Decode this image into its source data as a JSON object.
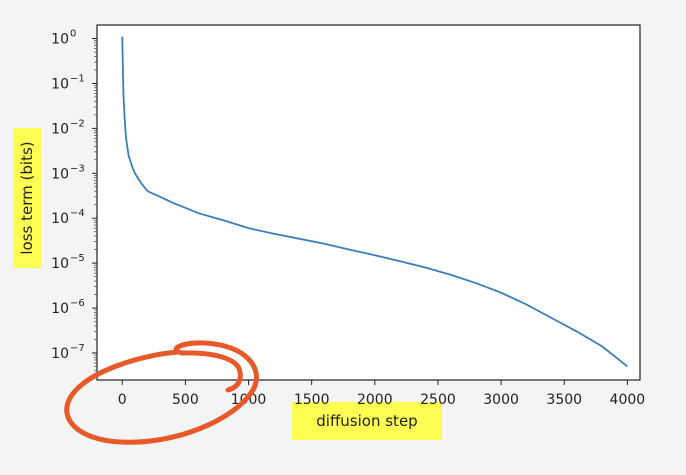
{
  "chart_data": {
    "type": "line",
    "xlabel": "diffusion step",
    "ylabel": "loss term (bits)",
    "y_scale": "log",
    "xlim": [
      -200,
      4100
    ],
    "ylim": [
      2.5e-08,
      2.0
    ],
    "x_ticks": [
      0,
      500,
      1000,
      1500,
      2000,
      2500,
      3000,
      3500,
      4000
    ],
    "x_tick_labels": [
      "0",
      "500",
      "1000",
      "1500",
      "2000",
      "2500",
      "3000",
      "3500",
      "4000"
    ],
    "y_ticks": [
      1,
      0.1,
      0.01,
      0.001,
      0.0001,
      1e-05,
      1e-06,
      1e-07
    ],
    "y_tick_labels": [
      {
        "base": "10",
        "exp": "0"
      },
      {
        "base": "10",
        "exp": "−1"
      },
      {
        "base": "10",
        "exp": "−2"
      },
      {
        "base": "10",
        "exp": "−3"
      },
      {
        "base": "10",
        "exp": "−4"
      },
      {
        "base": "10",
        "exp": "−5"
      },
      {
        "base": "10",
        "exp": "−6"
      },
      {
        "base": "10",
        "exp": "−7"
      }
    ],
    "grid": false,
    "line_color": "#3a7fbd",
    "highlight_color": "#fdfd52",
    "annotation_color": "#e8592a",
    "series": [
      {
        "x": [
          0,
          5,
          10,
          20,
          30,
          50,
          75,
          100,
          150,
          200,
          300,
          400,
          500,
          600,
          800,
          1000,
          1200,
          1400,
          1600,
          1800,
          2000,
          2200,
          2400,
          2600,
          2800,
          3000,
          3200,
          3400,
          3600,
          3800,
          4000
        ],
        "y": [
          1.1,
          0.2,
          0.05,
          0.015,
          0.006,
          0.0025,
          0.0015,
          0.001,
          0.0006,
          0.0004,
          0.0003,
          0.00022,
          0.00017,
          0.00013,
          9e-05,
          6e-05,
          4.5e-05,
          3.5e-05,
          2.7e-05,
          2e-05,
          1.5e-05,
          1.1e-05,
          8e-06,
          5.5e-06,
          3.6e-06,
          2.2e-06,
          1.2e-06,
          6e-07,
          3e-07,
          1.4e-07,
          5e-08
        ]
      }
    ]
  }
}
